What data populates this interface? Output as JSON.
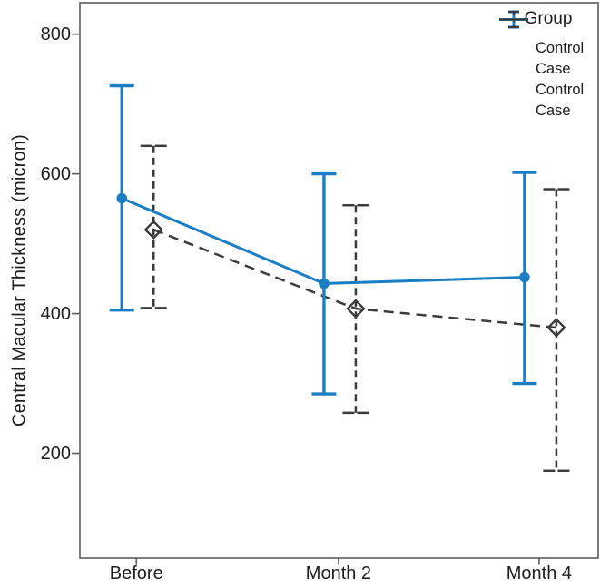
{
  "chart_data": {
    "type": "line",
    "title": "",
    "xlabel": "",
    "ylabel": "Central Macular Thickness (micron)",
    "categories": [
      "Before",
      "Month 2",
      "Month 4"
    ],
    "yticks": [
      200,
      400,
      600,
      800
    ],
    "ylim": [
      50,
      845
    ],
    "grid": false,
    "frame": true,
    "legend": {
      "title": "Group",
      "position": "top-right-inside",
      "items": [
        {
          "label": "Control",
          "icon": "errorbar-solid",
          "color": "#1b7ec3"
        },
        {
          "label": "Case",
          "icon": "errorbar-dashed",
          "color": "#3b3b3b"
        },
        {
          "label": "Control",
          "icon": "line-solid",
          "color": "#1b7ec3"
        },
        {
          "label": "Case",
          "icon": "line-dashed",
          "color": "#3b3b3b"
        }
      ]
    },
    "series": [
      {
        "name": "Control",
        "color": "#1b7ec3",
        "marker": "circle-filled",
        "line_style": "solid",
        "means": [
          565,
          443,
          452
        ],
        "ci_low": [
          405,
          285,
          300
        ],
        "ci_high": [
          726,
          600,
          602
        ]
      },
      {
        "name": "Case",
        "color": "#3b3b3b",
        "marker": "diamond-open",
        "line_style": "dashed",
        "means": [
          520,
          407,
          380
        ],
        "ci_low": [
          408,
          258,
          175
        ],
        "ci_high": [
          640,
          555,
          578
        ]
      }
    ],
    "axis_color": "#5c5c5c",
    "text_color": "#1d1d1d"
  }
}
